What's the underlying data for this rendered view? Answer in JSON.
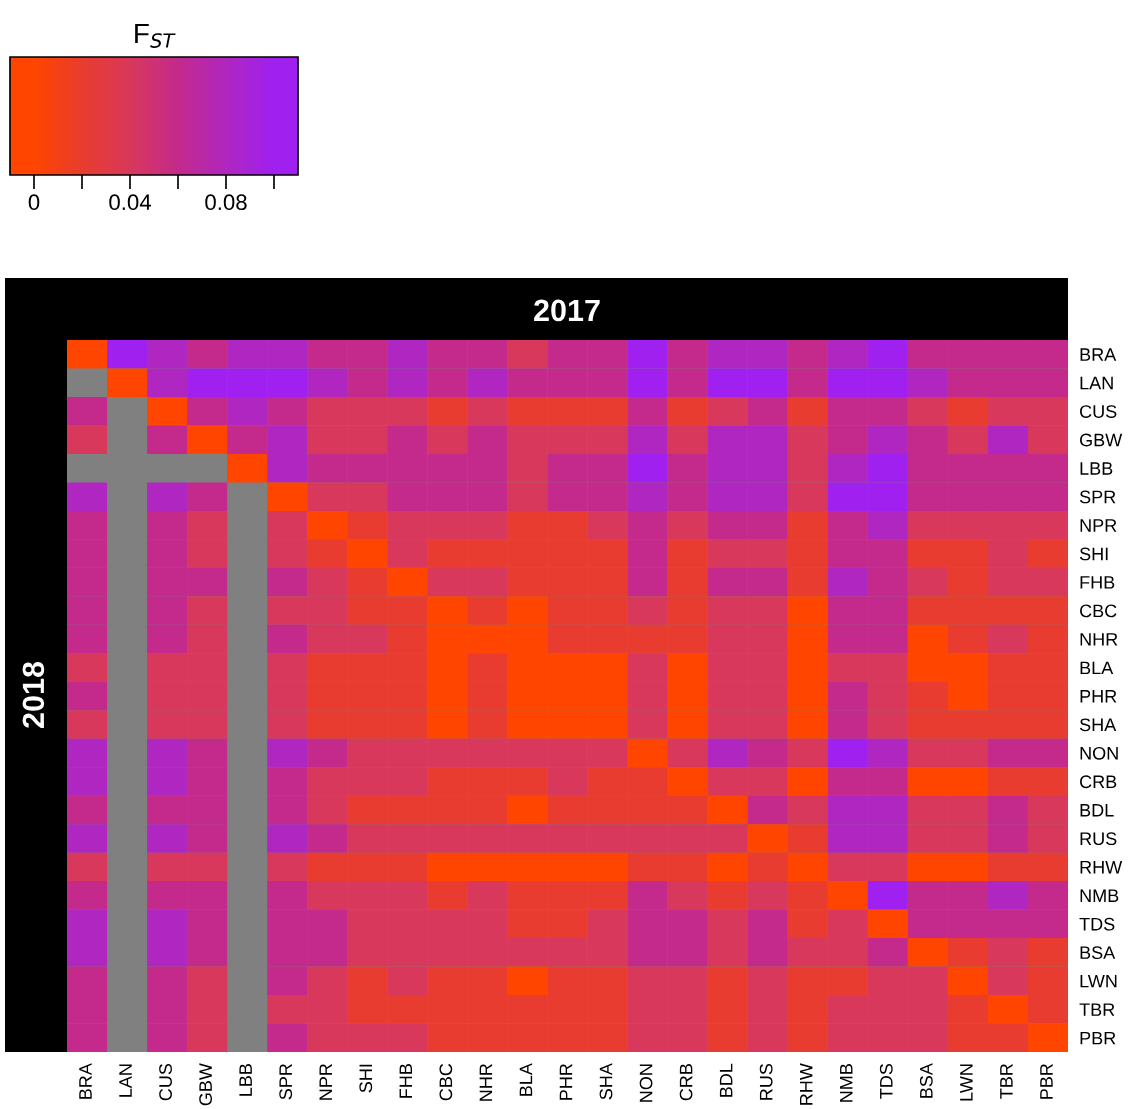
{
  "chart_data": {
    "type": "heatmap",
    "title": "2017",
    "ylabel": "2018",
    "clabel": "F$_{ST}$",
    "categories": [
      "BRA",
      "LAN",
      "CUS",
      "GBW",
      "LBB",
      "SPR",
      "NPR",
      "SHI",
      "FHB",
      "CBC",
      "NHR",
      "BLA",
      "PHR",
      "SHA",
      "NON",
      "CRB",
      "BDL",
      "RUS",
      "RHW",
      "NMB",
      "TDS",
      "BSA",
      "LWN",
      "TBR",
      "PBR"
    ],
    "y_categories": [
      "BRA",
      "LAN",
      "CUS",
      "GBW",
      "LBB",
      "SPR",
      "NPR",
      "SHI",
      "FHB",
      "CBC",
      "NHR",
      "BLA",
      "PHR",
      "SHA",
      "NON",
      "CRB",
      "BDL",
      "RUS",
      "RHW",
      "NMB",
      "TDS",
      "BSA",
      "LWN",
      "TBR",
      "PBR"
    ],
    "clim": [
      -0.01,
      0.11
    ],
    "cticks": [
      0,
      {
        "value": 0.02,
        "label": null
      },
      0.04,
      {
        "value": 0.06,
        "label": null
      },
      0.08,
      {
        "value": 0.1,
        "label": null
      }
    ],
    "cells": [
      [
        0,
        0.1,
        0.08,
        0.06,
        0.08,
        0.08,
        0.06,
        0.06,
        0.08,
        0.06,
        0.06,
        0.04,
        0.06,
        0.06,
        0.1,
        0.06,
        0.08,
        0.08,
        0.06,
        0.08,
        0.1,
        0.06,
        0.06,
        0.06,
        0.06
      ],
      [
        null,
        0,
        0.08,
        0.1,
        0.1,
        0.1,
        0.08,
        0.06,
        0.08,
        0.06,
        0.08,
        0.06,
        0.06,
        0.06,
        0.1,
        0.06,
        0.1,
        0.1,
        0.06,
        0.1,
        0.1,
        0.08,
        0.06,
        0.06,
        0.06
      ],
      [
        0.06,
        null,
        0,
        0.06,
        0.08,
        0.06,
        0.04,
        0.04,
        0.04,
        0.02,
        0.04,
        0.02,
        0.02,
        0.02,
        0.06,
        0.02,
        0.04,
        0.06,
        0.02,
        0.06,
        0.06,
        0.04,
        0.02,
        0.04,
        0.04
      ],
      [
        0.04,
        null,
        0.06,
        0,
        0.06,
        0.08,
        0.04,
        0.04,
        0.06,
        0.04,
        0.06,
        0.04,
        0.04,
        0.04,
        0.08,
        0.04,
        0.08,
        0.08,
        0.04,
        0.06,
        0.08,
        0.06,
        0.04,
        0.08,
        0.04
      ],
      [
        null,
        null,
        null,
        null,
        0,
        0.08,
        0.06,
        0.06,
        0.06,
        0.06,
        0.06,
        0.04,
        0.06,
        0.06,
        0.1,
        0.06,
        0.08,
        0.08,
        0.04,
        0.08,
        0.1,
        0.06,
        0.06,
        0.06,
        0.06
      ],
      [
        0.08,
        null,
        0.08,
        0.06,
        null,
        0,
        0.04,
        0.04,
        0.06,
        0.06,
        0.06,
        0.04,
        0.06,
        0.06,
        0.08,
        0.06,
        0.08,
        0.08,
        0.04,
        0.1,
        0.1,
        0.06,
        0.06,
        0.06,
        0.06
      ],
      [
        0.06,
        null,
        0.06,
        0.04,
        null,
        0.04,
        0,
        0.02,
        0.04,
        0.04,
        0.04,
        0.02,
        0.02,
        0.04,
        0.06,
        0.04,
        0.06,
        0.06,
        0.02,
        0.06,
        0.08,
        0.04,
        0.04,
        0.04,
        0.04
      ],
      [
        0.06,
        null,
        0.06,
        0.04,
        null,
        0.04,
        0.02,
        0,
        0.04,
        0.02,
        0.02,
        0.02,
        0.02,
        0.02,
        0.06,
        0.02,
        0.04,
        0.04,
        0.02,
        0.06,
        0.06,
        0.02,
        0.02,
        0.04,
        0.02
      ],
      [
        0.06,
        null,
        0.06,
        0.06,
        null,
        0.06,
        0.04,
        0.02,
        0,
        0.04,
        0.04,
        0.02,
        0.02,
        0.02,
        0.06,
        0.02,
        0.06,
        0.06,
        0.02,
        0.08,
        0.06,
        0.04,
        0.02,
        0.04,
        0.04
      ],
      [
        0.06,
        null,
        0.06,
        0.04,
        null,
        0.04,
        0.04,
        0.02,
        0.02,
        0,
        0.02,
        0,
        0.02,
        0.02,
        0.04,
        0.02,
        0.04,
        0.04,
        0,
        0.06,
        0.06,
        0.02,
        0.02,
        0.02,
        0.02
      ],
      [
        0.06,
        null,
        0.06,
        0.04,
        null,
        0.06,
        0.04,
        0.04,
        0.02,
        0,
        0,
        0,
        0.02,
        0.02,
        0.02,
        0.02,
        0.04,
        0.04,
        0,
        0.06,
        0.06,
        0,
        0.02,
        0.04,
        0.02
      ],
      [
        0.04,
        null,
        0.04,
        0.04,
        null,
        0.04,
        0.02,
        0.02,
        0.02,
        0,
        0.02,
        0,
        0,
        0,
        0.04,
        0,
        0.04,
        0.04,
        0,
        0.04,
        0.04,
        0,
        0,
        0.02,
        0.02
      ],
      [
        0.06,
        null,
        0.04,
        0.04,
        null,
        0.04,
        0.02,
        0.02,
        0.02,
        0,
        0.02,
        0,
        0,
        0,
        0.04,
        0,
        0.04,
        0.04,
        0,
        0.06,
        0.04,
        0.02,
        0,
        0.02,
        0.02
      ],
      [
        0.04,
        null,
        0.04,
        0.04,
        null,
        0.04,
        0.02,
        0.02,
        0.02,
        0,
        0.02,
        0,
        0,
        0,
        0.04,
        0,
        0.04,
        0.04,
        0,
        0.06,
        0.04,
        0.02,
        0.02,
        0.02,
        0.02
      ],
      [
        0.08,
        null,
        0.08,
        0.06,
        null,
        0.08,
        0.06,
        0.04,
        0.04,
        0.04,
        0.04,
        0.04,
        0.04,
        0.04,
        0,
        0.04,
        0.08,
        0.06,
        0.04,
        0.1,
        0.08,
        0.04,
        0.04,
        0.06,
        0.06
      ],
      [
        0.08,
        null,
        0.08,
        0.06,
        null,
        0.06,
        0.04,
        0.04,
        0.04,
        0.02,
        0.02,
        0.02,
        0.04,
        0.02,
        0.02,
        0,
        0.04,
        0.04,
        0,
        0.06,
        0.06,
        0,
        0,
        0.02,
        0.02
      ],
      [
        0.06,
        null,
        0.06,
        0.06,
        null,
        0.06,
        0.04,
        0.02,
        0.02,
        0.02,
        0.02,
        0,
        0.02,
        0.02,
        0.02,
        0.02,
        0,
        0.06,
        0.04,
        0.08,
        0.08,
        0.04,
        0.04,
        0.06,
        0.04
      ],
      [
        0.08,
        null,
        0.08,
        0.06,
        null,
        0.08,
        0.06,
        0.04,
        0.04,
        0.04,
        0.04,
        0.04,
        0.04,
        0.04,
        0.04,
        0.04,
        0.04,
        0,
        0.02,
        0.08,
        0.08,
        0.04,
        0.04,
        0.06,
        0.04
      ],
      [
        0.04,
        null,
        0.04,
        0.04,
        null,
        0.04,
        0.02,
        0.02,
        0.02,
        0,
        0,
        0,
        0,
        0,
        0.02,
        0.02,
        0,
        0.02,
        0,
        0.04,
        0.04,
        0,
        0,
        0.02,
        0.02
      ],
      [
        0.06,
        null,
        0.06,
        0.06,
        null,
        0.06,
        0.04,
        0.04,
        0.04,
        0.02,
        0.04,
        0.02,
        0.02,
        0.02,
        0.06,
        0.04,
        0.02,
        0.04,
        0.02,
        0,
        0.1,
        0.06,
        0.06,
        0.08,
        0.06
      ],
      [
        0.08,
        null,
        0.08,
        0.06,
        null,
        0.06,
        0.06,
        0.04,
        0.04,
        0.04,
        0.04,
        0.02,
        0.02,
        0.04,
        0.06,
        0.06,
        0.04,
        0.06,
        0.02,
        0.04,
        0,
        0.06,
        0.06,
        0.06,
        0.06
      ],
      [
        0.08,
        null,
        0.08,
        0.06,
        null,
        0.06,
        0.06,
        0.04,
        0.04,
        0.04,
        0.04,
        0.04,
        0.04,
        0.04,
        0.06,
        0.06,
        0.04,
        0.06,
        0.04,
        0.04,
        0.06,
        0,
        0.02,
        0.04,
        0.02
      ],
      [
        0.06,
        null,
        0.06,
        0.04,
        null,
        0.06,
        0.04,
        0.02,
        0.04,
        0.02,
        0.02,
        0,
        0.02,
        0.02,
        0.04,
        0.04,
        0.02,
        0.04,
        0.02,
        0.02,
        0.04,
        0.04,
        0,
        0.04,
        0.02
      ],
      [
        0.06,
        null,
        0.06,
        0.04,
        null,
        0.04,
        0.04,
        0.02,
        0.02,
        0.02,
        0.02,
        0.02,
        0.02,
        0.02,
        0.04,
        0.04,
        0.02,
        0.04,
        0.02,
        0.04,
        0.04,
        0.04,
        0.02,
        0,
        0.02
      ],
      [
        0.06,
        null,
        0.06,
        0.04,
        null,
        0.06,
        0.04,
        0.04,
        0.04,
        0.02,
        0.02,
        0.02,
        0.02,
        0.02,
        0.04,
        0.04,
        0.02,
        0.04,
        0.02,
        0.04,
        0.04,
        0.04,
        0.02,
        0.02,
        0
      ]
    ]
  }
}
